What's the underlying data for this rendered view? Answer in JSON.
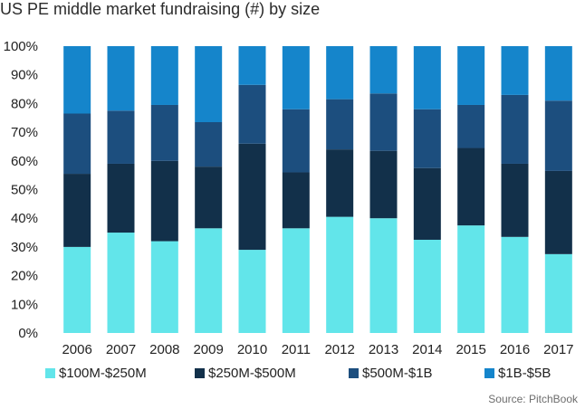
{
  "chart_data": {
    "type": "bar",
    "stacked": true,
    "title": "US PE middle market fundraising (#) by size",
    "xlabel": "",
    "ylabel": "",
    "ylim": [
      0,
      100
    ],
    "yticks": [
      "0%",
      "10%",
      "20%",
      "30%",
      "40%",
      "50%",
      "60%",
      "70%",
      "80%",
      "90%",
      "100%"
    ],
    "categories": [
      "2006",
      "2007",
      "2008",
      "2009",
      "2010",
      "2011",
      "2012",
      "2013",
      "2014",
      "2015",
      "2016",
      "2017"
    ],
    "series": [
      {
        "name": "$100M-$250M",
        "color": "#62e5ea",
        "values": [
          30,
          35,
          32,
          36.5,
          29,
          36.5,
          40.5,
          40,
          32.5,
          37.5,
          33.5,
          27.5
        ]
      },
      {
        "name": "$250M-$500M",
        "color": "#12304a",
        "values": [
          25.5,
          24,
          28,
          21.5,
          37,
          19.5,
          23.5,
          23.5,
          25,
          27,
          25.5,
          29
        ]
      },
      {
        "name": "$500M-$1B",
        "color": "#1c4e7e",
        "values": [
          21,
          18.5,
          19.5,
          15.5,
          20.5,
          22,
          17.5,
          20,
          20.5,
          15,
          24,
          24.5
        ]
      },
      {
        "name": "$1B-$5B",
        "color": "#1585cb",
        "values": [
          23.5,
          22.5,
          20.5,
          26.5,
          13.5,
          22,
          18.5,
          16.5,
          22,
          20.5,
          17,
          19
        ]
      }
    ],
    "source": "Source: PitchBook"
  }
}
